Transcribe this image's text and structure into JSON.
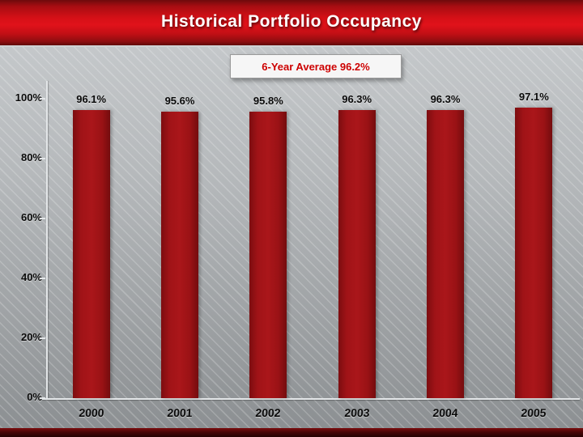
{
  "slide": {
    "title": "Historical Portfolio Occupancy"
  },
  "chart_data": {
    "type": "bar",
    "title": "Historical Portfolio Occupancy",
    "categories": [
      "2000",
      "2001",
      "2002",
      "2003",
      "2004",
      "2005"
    ],
    "values": [
      96.1,
      95.6,
      95.8,
      96.3,
      96.3,
      97.1
    ],
    "value_labels": [
      "96.1%",
      "95.6%",
      "95.8%",
      "96.3%",
      "96.3%",
      "97.1%"
    ],
    "annotation": "6-Year Average 96.2%",
    "xlabel": "",
    "ylabel": "",
    "ylim": [
      0,
      100
    ],
    "yticks": [
      0,
      20,
      40,
      60,
      80,
      100
    ],
    "ytick_labels": [
      "0%",
      "20%",
      "40%",
      "60%",
      "80%",
      "100%"
    ],
    "grid": false,
    "legend": "none",
    "bar_color": "#9e1418",
    "accent_color": "#cc0000",
    "label_color": "#0a0a0a",
    "background": "#aeb2b5"
  }
}
